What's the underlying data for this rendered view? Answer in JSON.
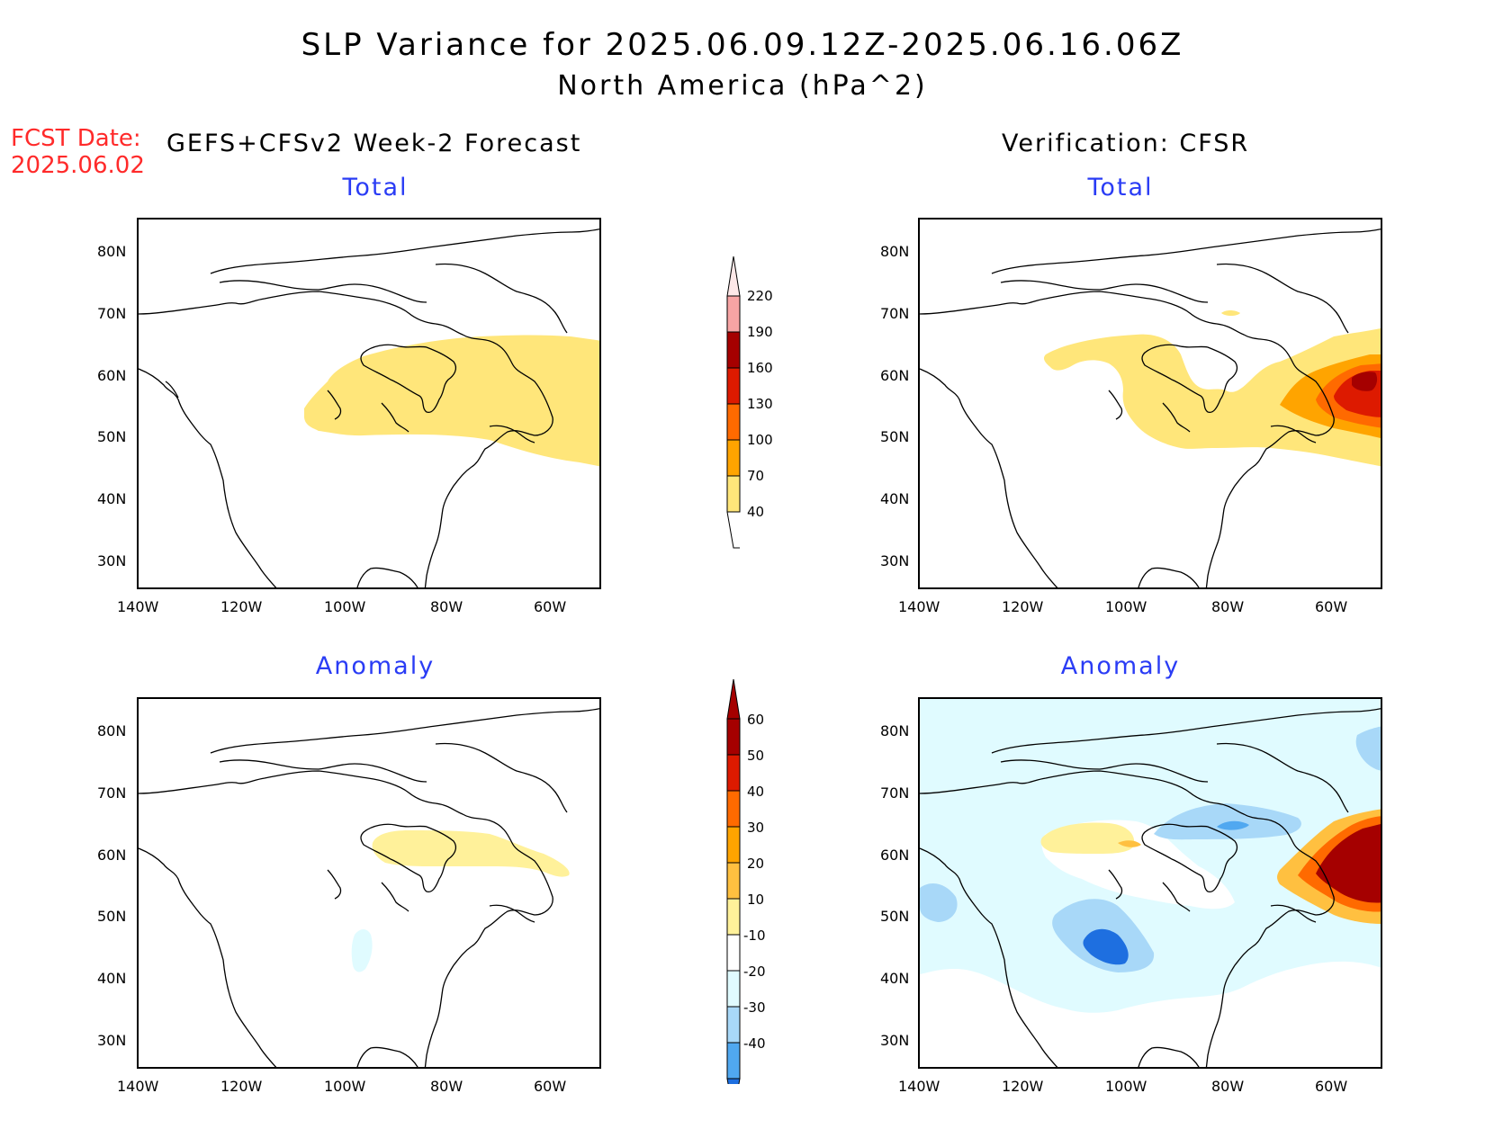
{
  "title": {
    "line1": "SLP Variance for 2025.06.09.12Z-2025.06.16.06Z",
    "line2": "North America (hPa^2)"
  },
  "fcst": {
    "label": "FCST Date:",
    "date": "2025.06.02"
  },
  "columns": {
    "left": "GEFS+CFSv2 Week-2 Forecast",
    "right": "Verification: CFSR"
  },
  "panels": {
    "top_left_title": "Total",
    "top_right_title": "Total",
    "bottom_left_title": "Anomaly",
    "bottom_right_title": "Anomaly"
  },
  "axes": {
    "lat_labels": [
      "80N",
      "70N",
      "60N",
      "50N",
      "40N",
      "30N"
    ],
    "lon_labels": [
      "140W",
      "120W",
      "100W",
      "80W",
      "60W"
    ]
  },
  "colorbar_total": {
    "labels": [
      "220",
      "190",
      "160",
      "130",
      "100",
      "70",
      "40"
    ],
    "colors": [
      "#f7a4a4",
      "#a50000",
      "#dd1a00",
      "#ff6a00",
      "#ffa400",
      "#ffe67a"
    ]
  },
  "colorbar_anomaly": {
    "labels": [
      "60",
      "50",
      "40",
      "30",
      "20",
      "10",
      "-10",
      "-20",
      "-30",
      "-40"
    ],
    "colors": [
      "#a50000",
      "#dd1a00",
      "#ff6a00",
      "#ffa400",
      "#ffc040",
      "#fff19a",
      "#ffffff",
      "#e0fbff",
      "#a8d8f8",
      "#50a8f0",
      "#1e6fe0"
    ]
  }
}
